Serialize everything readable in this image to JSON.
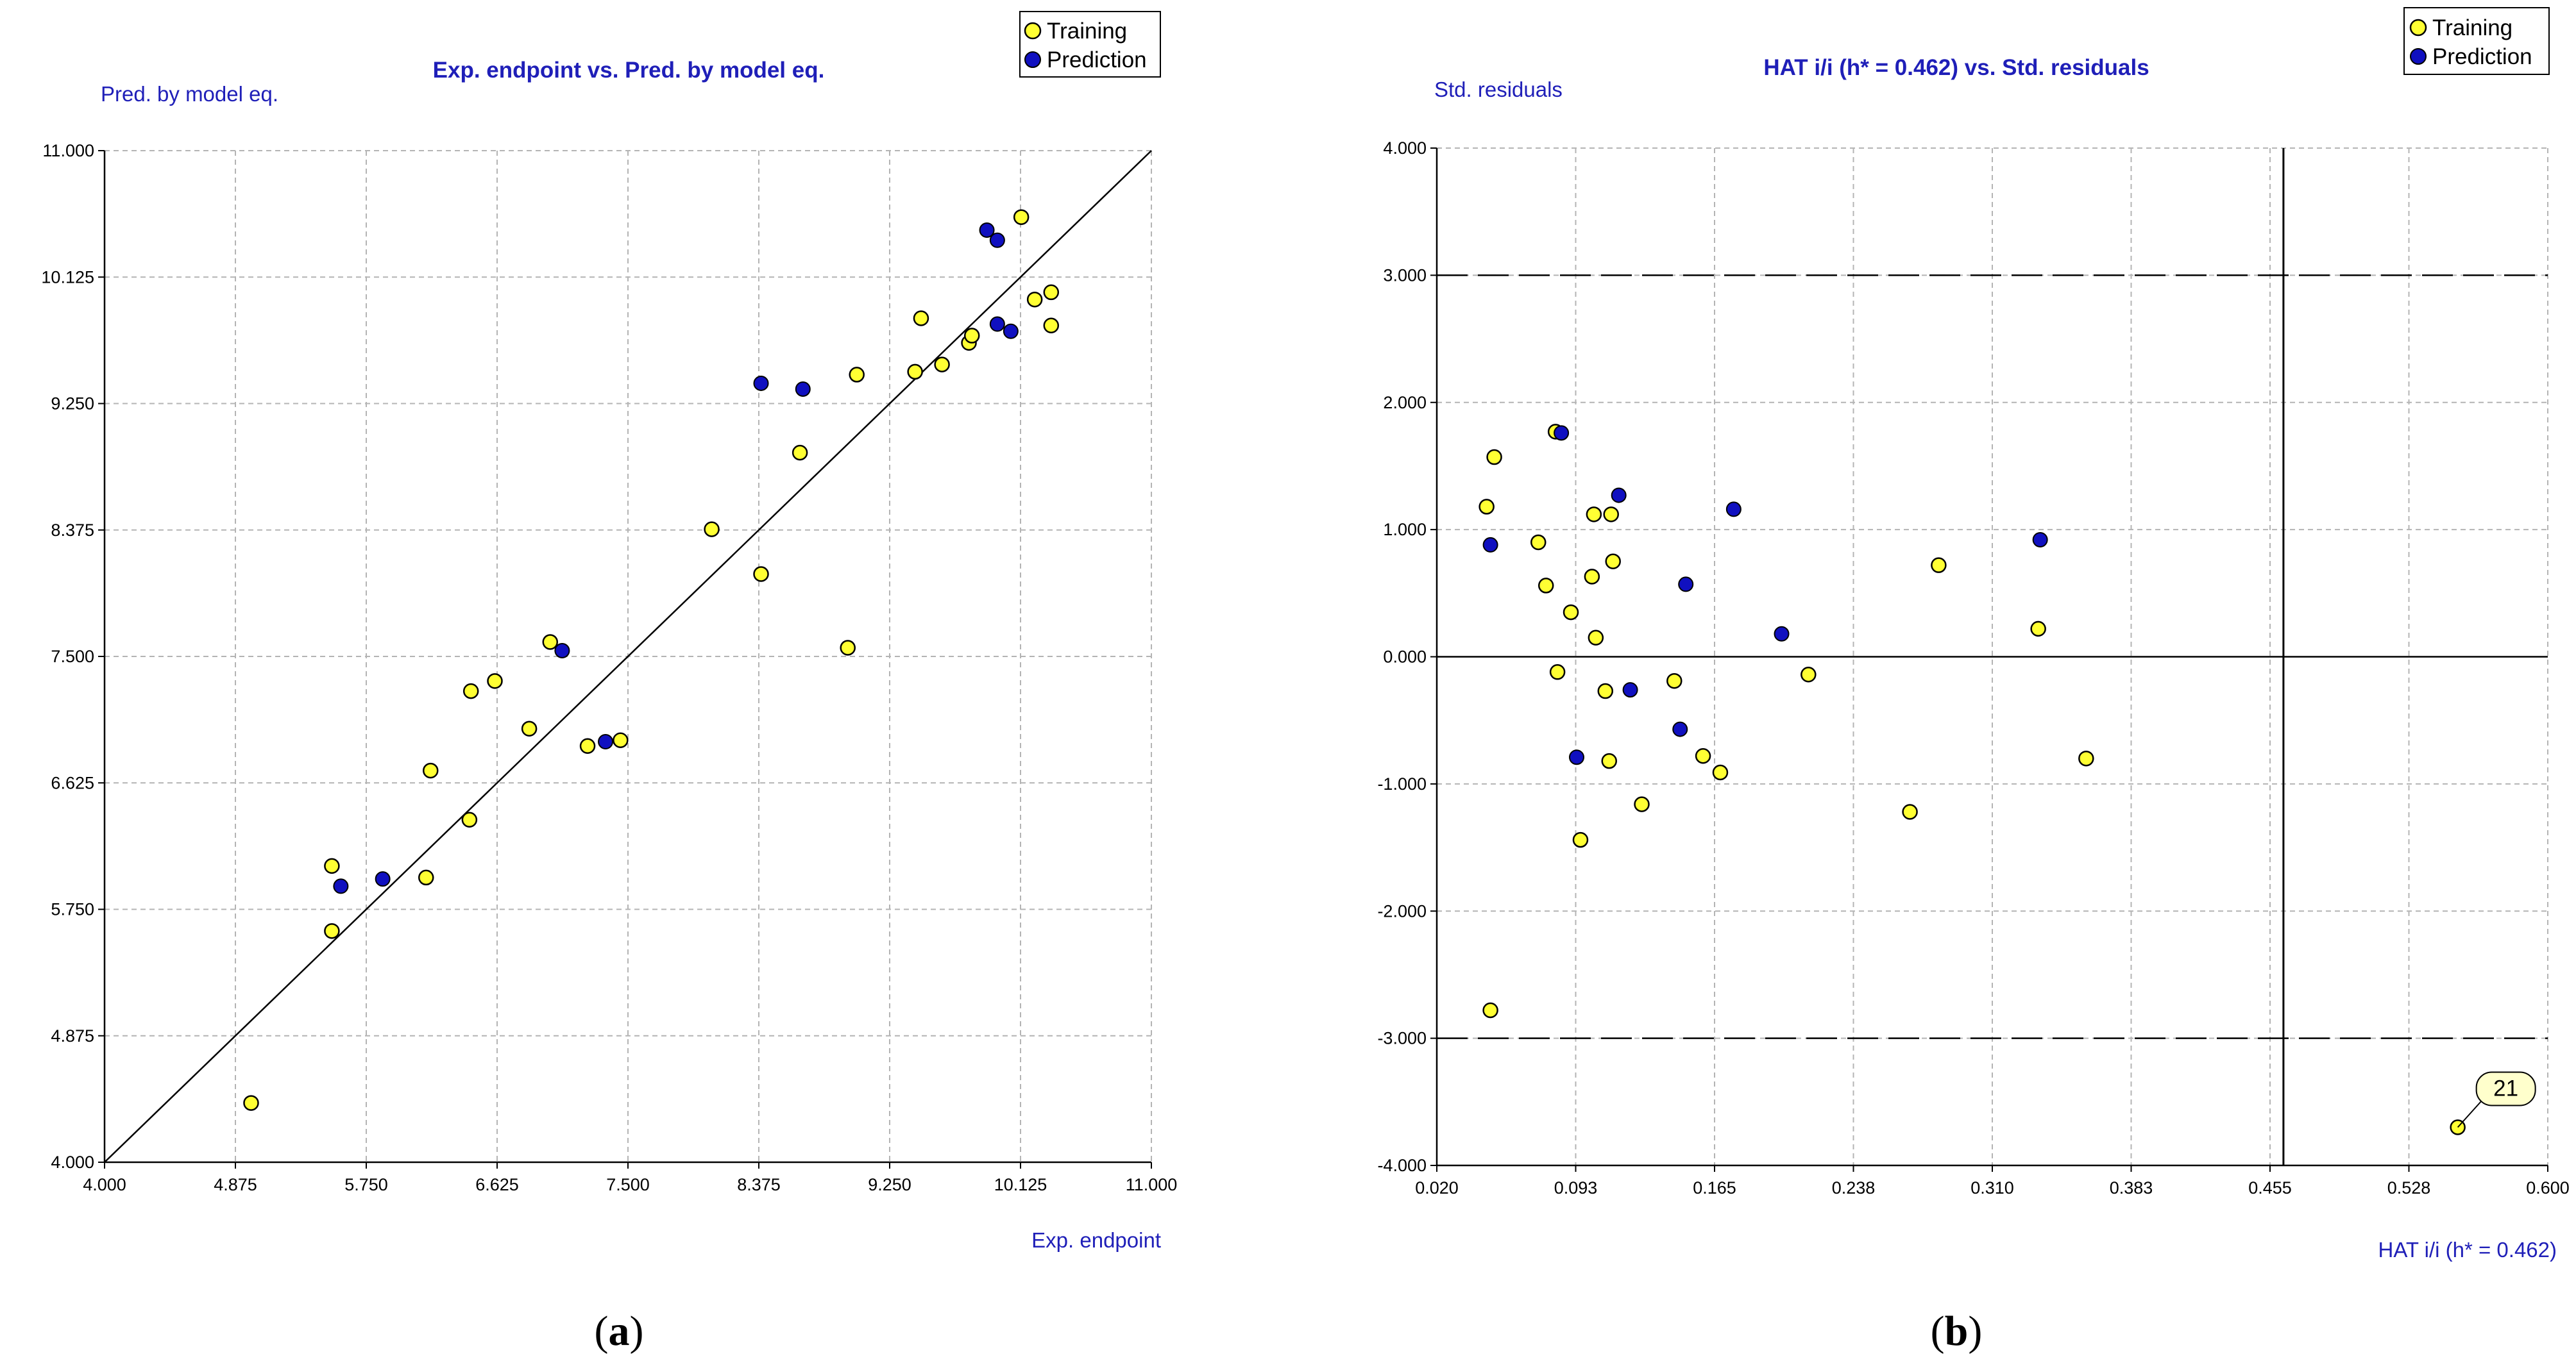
{
  "colors": {
    "training": "#ffff33",
    "prediction": "#1010c0",
    "label_blue": "#1f1fb8",
    "grid": "#b4b4b4"
  },
  "chart_data": [
    {
      "type": "scatter",
      "title": "Exp. endpoint vs. Pred. by model eq.",
      "xlabel": "Exp. endpoint",
      "ylabel": "Pred. by model eq.",
      "xlim": [
        4.0,
        11.0
      ],
      "ylim": [
        4.0,
        11.0
      ],
      "xticks": [
        "4.000",
        "4.875",
        "5.750",
        "6.625",
        "7.500",
        "8.375",
        "9.250",
        "10.125",
        "11.000"
      ],
      "yticks": [
        "4.000",
        "4.875",
        "5.750",
        "6.625",
        "7.500",
        "8.375",
        "9.250",
        "10.125",
        "11.000"
      ],
      "legend": [
        "Training",
        "Prediction"
      ],
      "reference_line": {
        "from": [
          4.0,
          4.0
        ],
        "to": [
          11.0,
          11.0
        ]
      },
      "caption": "a",
      "series": [
        {
          "name": "Training",
          "points": [
            [
              4.98,
              4.41
            ],
            [
              5.52,
              6.05
            ],
            [
              5.52,
              5.6
            ],
            [
              6.18,
              6.71
            ],
            [
              6.15,
              5.97
            ],
            [
              6.44,
              6.37
            ],
            [
              6.45,
              7.26
            ],
            [
              6.61,
              7.33
            ],
            [
              6.84,
              7.0
            ],
            [
              6.98,
              7.6
            ],
            [
              7.23,
              6.88
            ],
            [
              7.45,
              6.92
            ],
            [
              8.06,
              8.38
            ],
            [
              8.39,
              8.07
            ],
            [
              8.65,
              8.91
            ],
            [
              8.97,
              7.56
            ],
            [
              9.03,
              9.45
            ],
            [
              9.42,
              9.47
            ],
            [
              9.46,
              9.84
            ],
            [
              9.6,
              9.52
            ],
            [
              9.78,
              9.67
            ],
            [
              9.8,
              9.72
            ],
            [
              10.13,
              10.54
            ],
            [
              10.22,
              9.97
            ],
            [
              10.33,
              10.02
            ],
            [
              10.33,
              9.79
            ]
          ]
        },
        {
          "name": "Prediction",
          "points": [
            [
              5.58,
              5.91
            ],
            [
              5.86,
              5.96
            ],
            [
              7.06,
              7.54
            ],
            [
              7.35,
              6.91
            ],
            [
              8.39,
              9.39
            ],
            [
              8.67,
              9.35
            ],
            [
              9.9,
              10.45
            ],
            [
              9.97,
              10.38
            ],
            [
              9.97,
              9.8
            ],
            [
              10.06,
              9.75
            ]
          ]
        }
      ]
    },
    {
      "type": "scatter",
      "title": "HAT i/i (h* = 0.462) vs. Std. residuals",
      "xlabel": "HAT i/i (h* = 0.462)",
      "ylabel": "Std. residuals",
      "xlim": [
        0.02,
        0.6
      ],
      "ylim": [
        -4.0,
        4.0
      ],
      "xticks": [
        "0.020",
        "0.093",
        "0.165",
        "0.238",
        "0.310",
        "0.383",
        "0.455",
        "0.528",
        "0.600"
      ],
      "yticks": [
        "-4.000",
        "-3.000",
        "-2.000",
        "-1.000",
        "0.000",
        "1.000",
        "2.000",
        "3.000",
        "4.000"
      ],
      "legend": [
        "Training",
        "Prediction"
      ],
      "hat_threshold": 0.462,
      "residual_limits": [
        -3.0,
        3.0
      ],
      "annotation": {
        "label": "21",
        "point": [
          0.553,
          -3.7
        ]
      },
      "caption": "b",
      "series": [
        {
          "name": "Training",
          "points": [
            [
              0.046,
              1.18
            ],
            [
              0.05,
              1.57
            ],
            [
              0.048,
              -2.78
            ],
            [
              0.073,
              0.9
            ],
            [
              0.077,
              0.56
            ],
            [
              0.082,
              1.77
            ],
            [
              0.083,
              -0.12
            ],
            [
              0.09,
              0.35
            ],
            [
              0.095,
              -1.44
            ],
            [
              0.101,
              0.63
            ],
            [
              0.103,
              0.15
            ],
            [
              0.102,
              1.12
            ],
            [
              0.108,
              -0.27
            ],
            [
              0.11,
              -0.82
            ],
            [
              0.111,
              1.12
            ],
            [
              0.112,
              0.75
            ],
            [
              0.127,
              -1.16
            ],
            [
              0.144,
              -0.19
            ],
            [
              0.159,
              -0.78
            ],
            [
              0.168,
              -0.91
            ],
            [
              0.214,
              -0.14
            ],
            [
              0.267,
              -1.22
            ],
            [
              0.282,
              0.72
            ],
            [
              0.334,
              0.22
            ],
            [
              0.359,
              -0.8
            ],
            [
              0.553,
              -3.7
            ]
          ]
        },
        {
          "name": "Prediction",
          "points": [
            [
              0.048,
              0.88
            ],
            [
              0.085,
              1.76
            ],
            [
              0.093,
              -0.79
            ],
            [
              0.115,
              1.27
            ],
            [
              0.121,
              -0.26
            ],
            [
              0.147,
              -0.57
            ],
            [
              0.15,
              0.57
            ],
            [
              0.175,
              1.16
            ],
            [
              0.2,
              0.18
            ],
            [
              0.335,
              0.92
            ]
          ]
        }
      ]
    }
  ]
}
